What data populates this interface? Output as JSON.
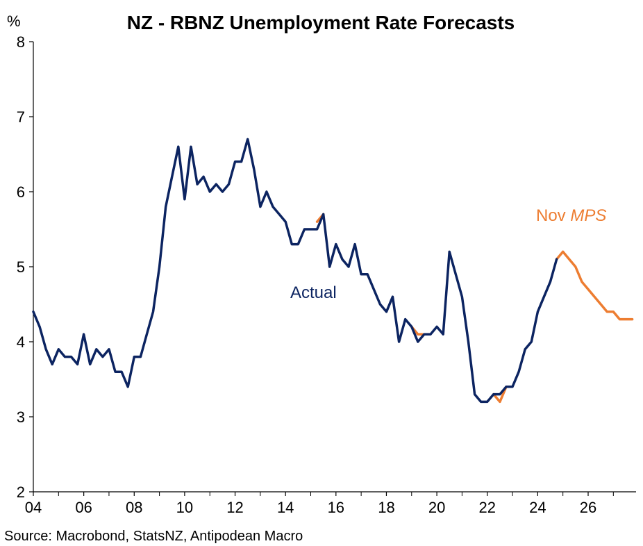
{
  "chart_data": {
    "type": "line",
    "title": "NZ - RBNZ Unemployment Rate Forecasts",
    "ylabel": "%",
    "source": "Source: Macrobond, StatsNZ, Antipodean Macro",
    "ylim": [
      2,
      8
    ],
    "xlim": [
      2004,
      2027.9
    ],
    "y_ticks": [
      "2",
      "3",
      "4",
      "5",
      "6",
      "7",
      "8"
    ],
    "x_ticks": [
      "04",
      "06",
      "08",
      "10",
      "12",
      "14",
      "16",
      "18",
      "20",
      "22",
      "24",
      "26"
    ],
    "grid": false,
    "colors": {
      "actual": "#0c2461",
      "forecast": "#ed7d31",
      "axis": "#000000"
    },
    "annotations": {
      "actual": "Actual",
      "forecast_prefix": "Nov ",
      "forecast_italic": "MPS"
    },
    "series": [
      {
        "name": "Actual",
        "x": [
          2004.0,
          2004.25,
          2004.5,
          2004.75,
          2005.0,
          2005.25,
          2005.5,
          2005.75,
          2006.0,
          2006.25,
          2006.5,
          2006.75,
          2007.0,
          2007.25,
          2007.5,
          2007.75,
          2008.0,
          2008.25,
          2008.5,
          2008.75,
          2009.0,
          2009.25,
          2009.5,
          2009.75,
          2010.0,
          2010.25,
          2010.5,
          2010.75,
          2011.0,
          2011.25,
          2011.5,
          2011.75,
          2012.0,
          2012.25,
          2012.5,
          2012.75,
          2013.0,
          2013.25,
          2013.5,
          2013.75,
          2014.0,
          2014.25,
          2014.5,
          2014.75,
          2015.0,
          2015.25,
          2015.5,
          2015.75,
          2016.0,
          2016.25,
          2016.5,
          2016.75,
          2017.0,
          2017.25,
          2017.5,
          2017.75,
          2018.0,
          2018.25,
          2018.5,
          2018.75,
          2019.0,
          2019.25,
          2019.5,
          2019.75,
          2020.0,
          2020.25,
          2020.5,
          2020.75,
          2021.0,
          2021.25,
          2021.5,
          2021.75,
          2022.0,
          2022.25,
          2022.5,
          2022.75,
          2023.0,
          2023.25,
          2023.5,
          2023.75,
          2024.0,
          2024.25,
          2024.5,
          2024.75
        ],
        "values": [
          4.4,
          4.2,
          3.9,
          3.7,
          3.9,
          3.8,
          3.8,
          3.7,
          4.1,
          3.7,
          3.9,
          3.8,
          3.9,
          3.6,
          3.6,
          3.4,
          3.8,
          3.8,
          4.1,
          4.4,
          5.0,
          5.8,
          6.2,
          6.6,
          5.9,
          6.6,
          6.1,
          6.2,
          6.0,
          6.1,
          6.0,
          6.1,
          6.4,
          6.4,
          6.7,
          6.3,
          5.8,
          6.0,
          5.8,
          5.7,
          5.6,
          5.3,
          5.3,
          5.5,
          5.5,
          5.5,
          5.7,
          5.0,
          5.3,
          5.1,
          5.0,
          5.3,
          4.9,
          4.9,
          4.7,
          4.5,
          4.4,
          4.6,
          4.0,
          4.3,
          4.2,
          4.0,
          4.1,
          4.1,
          4.2,
          4.1,
          5.2,
          4.9,
          4.6,
          4.0,
          3.3,
          3.2,
          3.2,
          3.3,
          3.3,
          3.4,
          3.4,
          3.6,
          3.9,
          4.0,
          4.4,
          4.6,
          4.8,
          5.1
        ]
      },
      {
        "name": "Nov MPS",
        "x": [
          2015.25,
          2015.5,
          2019.0,
          2019.25,
          2019.5,
          2022.25,
          2022.5,
          2022.75,
          2024.75,
          2025.0,
          2025.25,
          2025.5,
          2025.75,
          2026.0,
          2026.25,
          2026.5,
          2026.75,
          2027.0,
          2027.25,
          2027.5,
          2027.75
        ],
        "values": [
          5.6,
          5.7,
          4.2,
          4.1,
          4.1,
          3.3,
          3.2,
          3.4,
          5.1,
          5.2,
          5.1,
          5.0,
          4.8,
          4.7,
          4.6,
          4.5,
          4.4,
          4.4,
          4.3,
          4.3,
          4.3
        ],
        "segments": [
          [
            0,
            1
          ],
          [
            2,
            4
          ],
          [
            5,
            7
          ],
          [
            8,
            20
          ]
        ]
      }
    ]
  }
}
